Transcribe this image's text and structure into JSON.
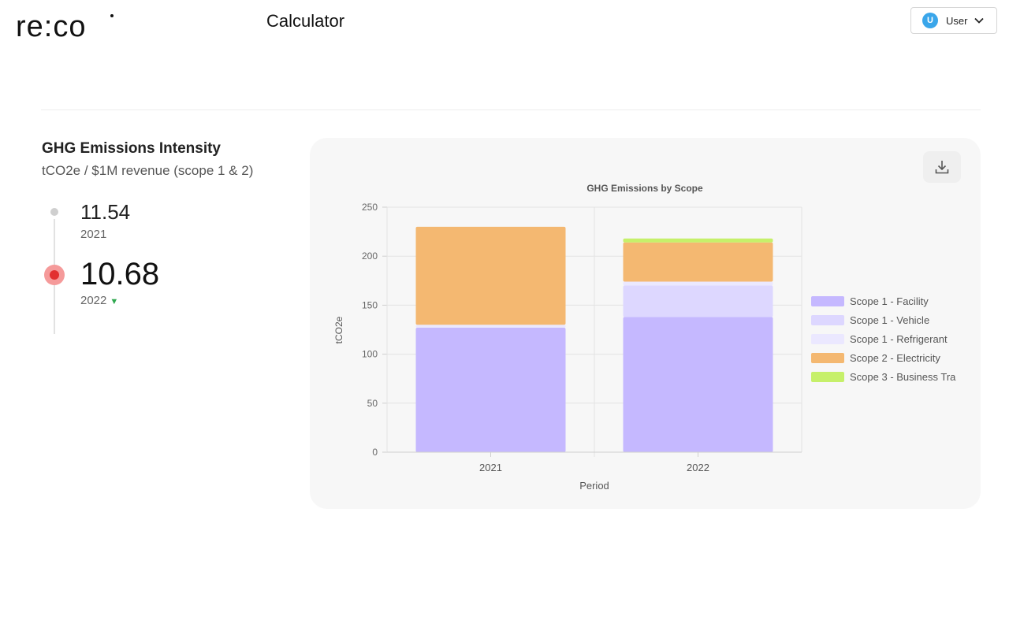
{
  "header": {
    "logo_text": "re:co",
    "title": "Calculator",
    "user": {
      "initial": "U",
      "name": "User"
    }
  },
  "kpi": {
    "title": "GHG Emissions Intensity",
    "subtitle": "tCO2e / $1M revenue (scope 1 & 2)",
    "entries": [
      {
        "value": "11.54",
        "year": "2021"
      },
      {
        "value": "10.68",
        "year": "2022",
        "trend": "▼"
      }
    ]
  },
  "chart_card": {
    "download_icon": "download-icon"
  },
  "chart_data": {
    "type": "bar",
    "stacked": true,
    "title": "GHG Emissions by Scope",
    "xlabel": "Period",
    "ylabel": "tCO2e",
    "categories": [
      "2021",
      "2022"
    ],
    "ylim": [
      0,
      250
    ],
    "yticks": [
      0,
      50,
      100,
      150,
      200,
      250
    ],
    "grid": true,
    "legend_position": "right",
    "series": [
      {
        "name": "Scope 1 - Facility",
        "color": "#c5b8ff",
        "values": [
          127,
          138
        ]
      },
      {
        "name": "Scope 1 - Vehicle",
        "color": "#ddd7ff",
        "values": [
          0,
          32
        ]
      },
      {
        "name": "Scope 1 - Refrigerant",
        "color": "#ebe8ff",
        "values": [
          3,
          4
        ]
      },
      {
        "name": "Scope 2 - Electricity",
        "color": "#f4b871",
        "values": [
          100,
          40
        ]
      },
      {
        "name": "Scope 3 - Business Tra",
        "color": "#c6f06a",
        "values": [
          0,
          4
        ]
      }
    ]
  }
}
